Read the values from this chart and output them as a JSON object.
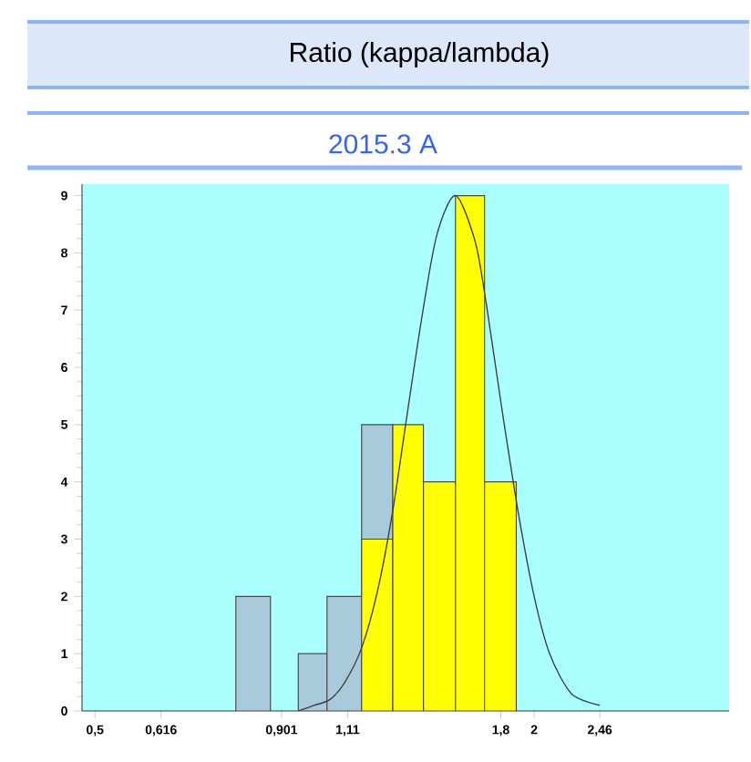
{
  "chart_data": {
    "type": "histogram",
    "title": "Ratio (kappa/lambda)",
    "subtitle": "2015.3 A",
    "bins": [
      0.78,
      0.87,
      0.95,
      1.04,
      1.16,
      1.28,
      1.41,
      1.56,
      1.71,
      1.89
    ],
    "series": [
      {
        "color": "#a8cadb",
        "values": [
          2,
          0,
          1,
          2,
          5,
          null,
          null,
          null,
          null
        ]
      },
      {
        "color": "#ffff00",
        "values": [
          0,
          0,
          0,
          0,
          3,
          5,
          4,
          9,
          4
        ]
      },
      {
        "type": "line",
        "color": "#404040",
        "x": [
          0.95,
          1.0,
          1.05,
          1.1,
          1.16,
          1.22,
          1.28,
          1.34,
          1.4,
          1.47,
          1.56,
          1.66,
          1.72,
          1.8,
          1.9,
          2.0,
          2.1,
          2.25,
          2.46
        ],
        "values": [
          0.0,
          0.1,
          0.2,
          0.5,
          1.1,
          2.1,
          3.5,
          5.2,
          6.8,
          8.3,
          9,
          8.2,
          7.1,
          5.4,
          3.5,
          2.0,
          1.0,
          0.3,
          0.1
        ]
      }
    ],
    "log": "x",
    "xlim": [
      0.48,
      3.7
    ],
    "ylim": [
      0,
      9.2
    ],
    "xticks": [
      {
        "value": 0.5,
        "label": "0,5"
      },
      {
        "value": 0.616,
        "label": "0,616"
      },
      {
        "value": 0.901,
        "label": "0,901"
      },
      {
        "value": 1.11,
        "label": "1,11"
      },
      {
        "value": 1.8,
        "label": "1,8"
      },
      2,
      {
        "value": 2.46,
        "label": "2,46"
      }
    ],
    "yticks": [
      0,
      1,
      2,
      3,
      4,
      5,
      6,
      7,
      8,
      9
    ],
    "grid": false
  }
}
